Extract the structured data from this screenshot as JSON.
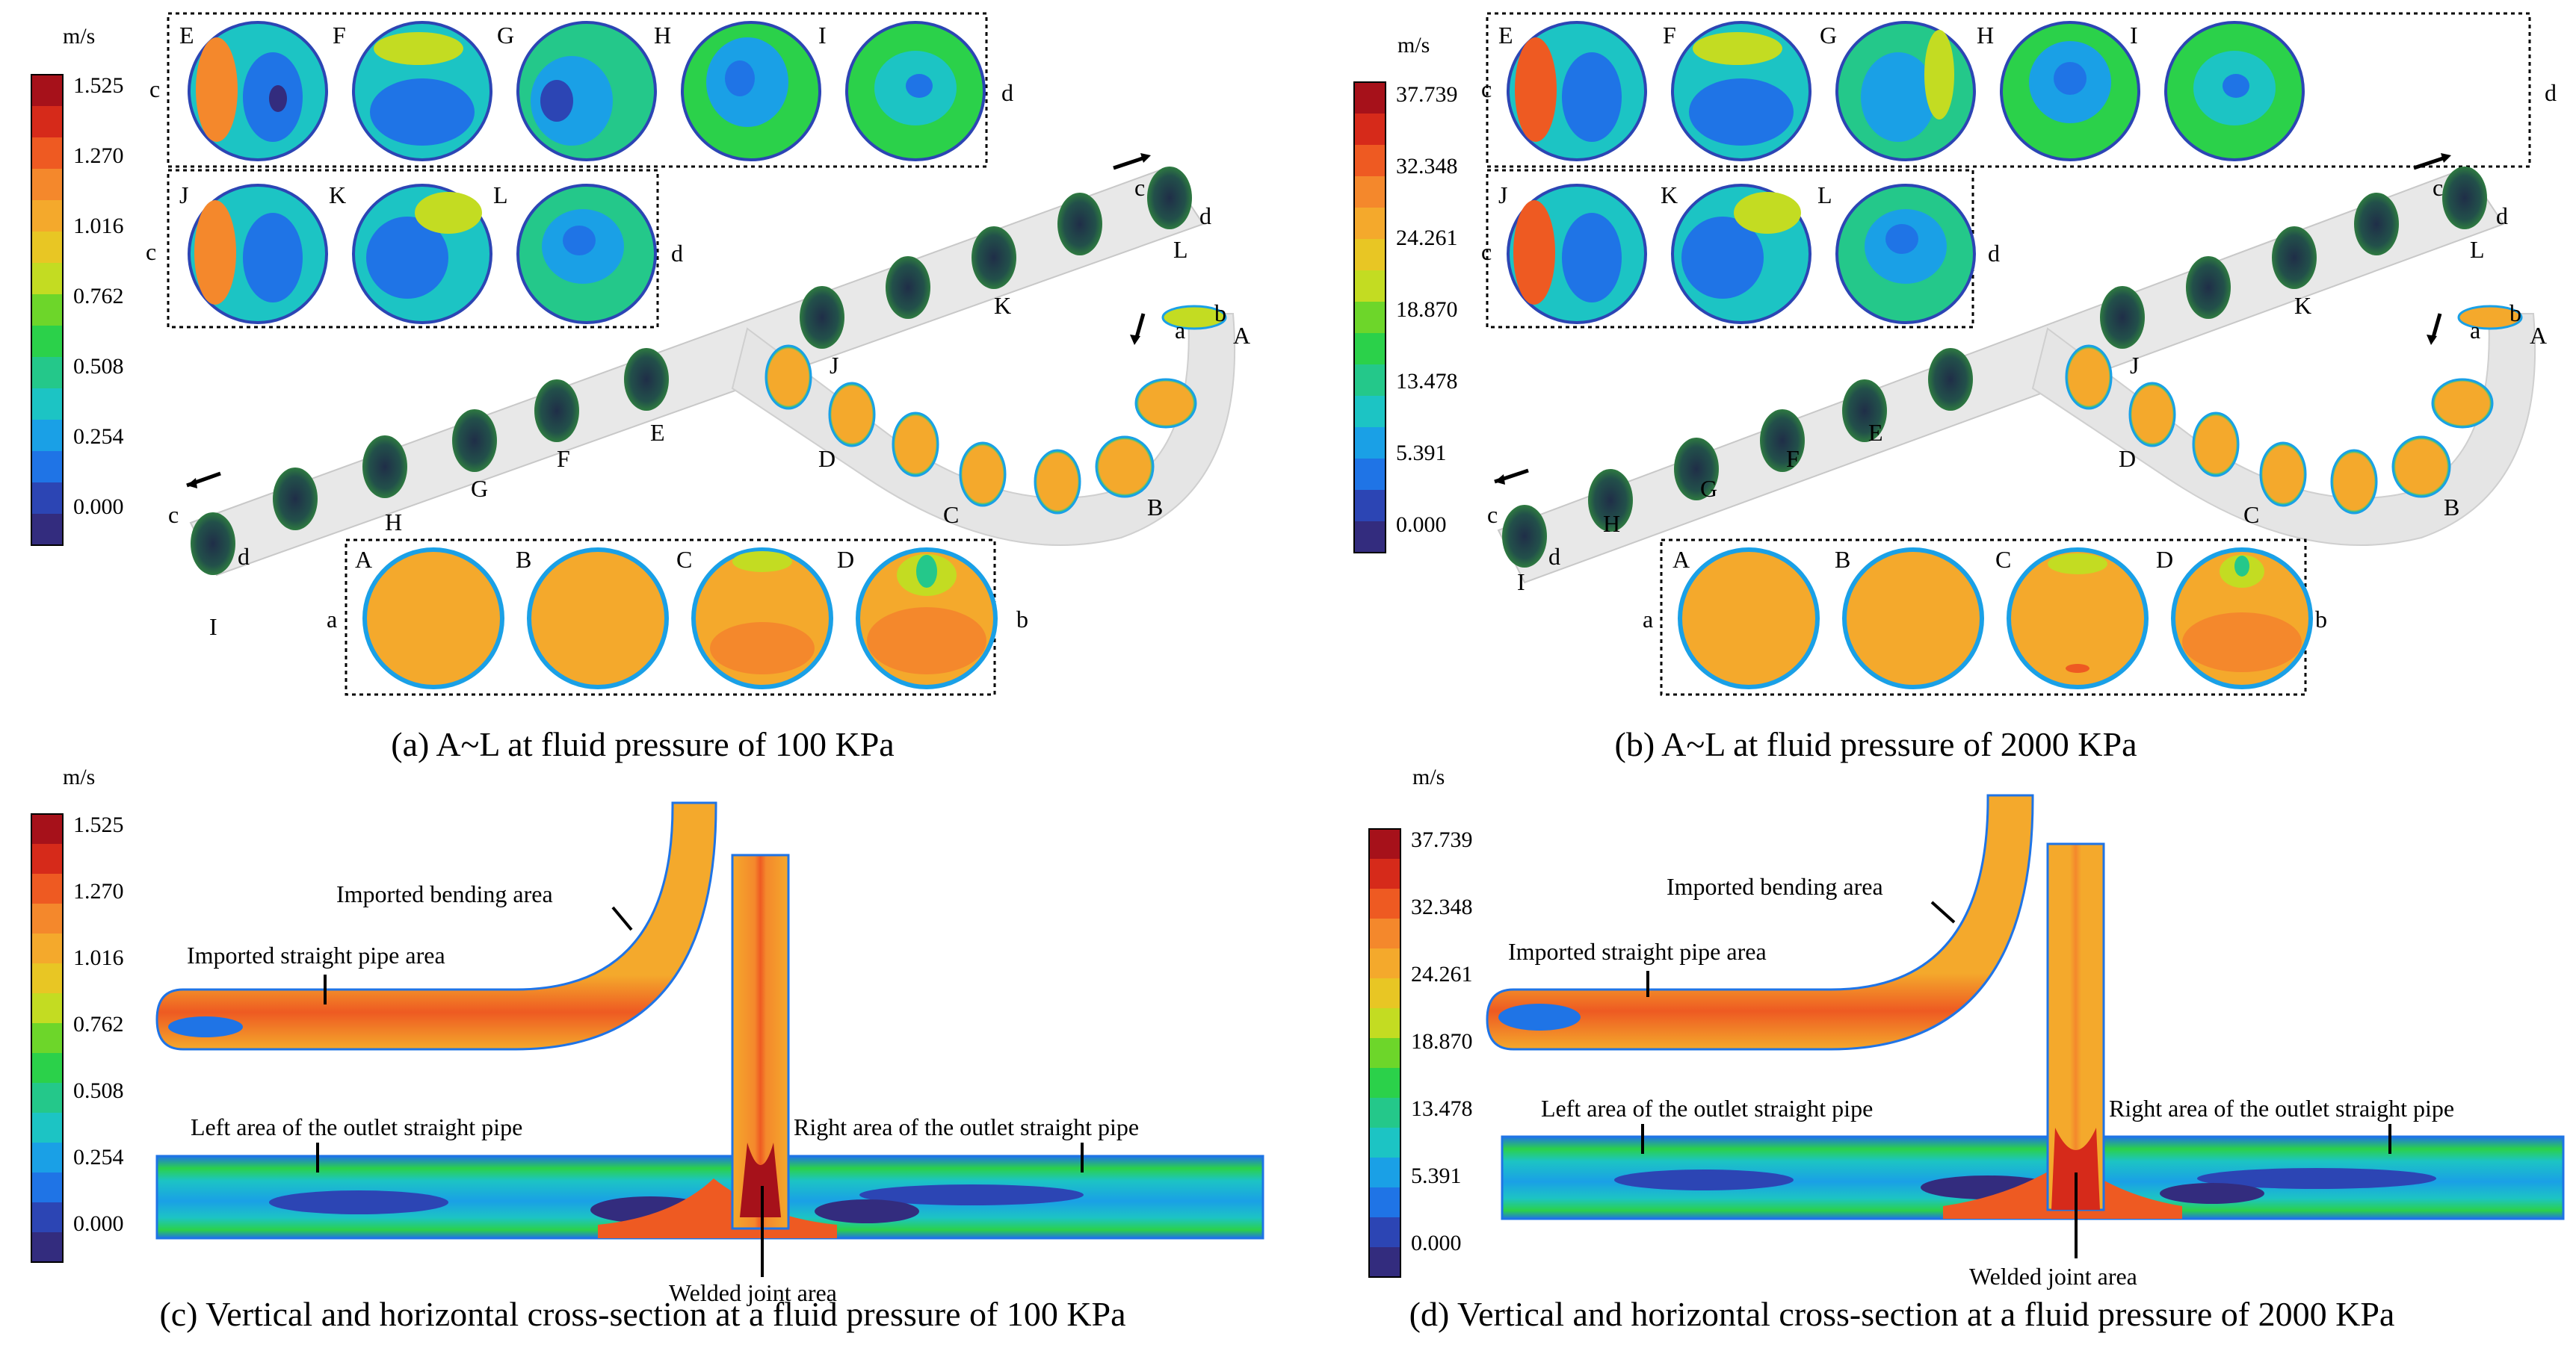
{
  "unit": "m/s",
  "colormap": [
    "#332c7e",
    "#2c45b4",
    "#1f74e6",
    "#1aa0e6",
    "#1cc4c4",
    "#24c88a",
    "#2bd14a",
    "#6dd62a",
    "#c3dc22",
    "#e8c624",
    "#f4a92c",
    "#f4882c",
    "#ee5a22",
    "#d62a1a",
    "#a6111a"
  ],
  "panel_a": {
    "caption": "(a) A~L at fluid pressure of 100 KPa",
    "scale_unit": "m/s",
    "scale_ticks": [
      "1.525",
      "1.270",
      "1.016",
      "0.762",
      "0.508",
      "0.254",
      "0.000"
    ],
    "upper_section_labels": [
      "E",
      "F",
      "G",
      "H",
      "I"
    ],
    "middle_section_labels": [
      "J",
      "K",
      "L"
    ],
    "lower_section_labels": [
      "A",
      "B",
      "C",
      "D"
    ],
    "pipe_labels": [
      "I",
      "H",
      "G",
      "F",
      "E",
      "J",
      "K",
      "L",
      "D",
      "C",
      "B",
      "A"
    ],
    "side_labels": {
      "c": "c",
      "d": "d",
      "a": "a",
      "b": "b"
    }
  },
  "panel_b": {
    "caption": "(b) A~L at fluid pressure of 2000 KPa",
    "scale_unit": "m/s",
    "scale_ticks": [
      "37.739",
      "32.348",
      "24.261",
      "18.870",
      "13.478",
      "5.391",
      "0.000"
    ],
    "upper_section_labels": [
      "E",
      "F",
      "G",
      "H",
      "I"
    ],
    "middle_section_labels": [
      "J",
      "K",
      "L"
    ],
    "lower_section_labels": [
      "A",
      "B",
      "C",
      "D"
    ],
    "pipe_labels": [
      "I",
      "H",
      "G",
      "F",
      "E",
      "J",
      "K",
      "L",
      "D",
      "C",
      "B",
      "A"
    ],
    "side_labels": {
      "c": "c",
      "d": "d",
      "a": "a",
      "b": "b"
    }
  },
  "panel_c": {
    "caption": "(c) Vertical and horizontal cross-section at a fluid pressure of 100 KPa",
    "scale_unit": "m/s",
    "scale_ticks": [
      "1.525",
      "1.270",
      "1.016",
      "0.762",
      "0.508",
      "0.254",
      "0.000"
    ],
    "annotations": {
      "bending": "Imported bending area",
      "straight": "Imported straight pipe area",
      "left_outlet": "Left area of the outlet straight pipe",
      "right_outlet": "Right area of the outlet straight pipe",
      "welded": "Welded joint area"
    }
  },
  "panel_d": {
    "caption": "(d) Vertical and horizontal cross-section at a fluid pressure of 2000 KPa",
    "scale_unit": "m/s",
    "scale_ticks": [
      "37.739",
      "32.348",
      "24.261",
      "18.870",
      "13.478",
      "5.391",
      "0.000"
    ],
    "annotations": {
      "bending": "Imported bending area",
      "straight": "Imported straight pipe area",
      "left_outlet": "Left area of the outlet straight pipe",
      "right_outlet": "Right area of the outlet straight pipe",
      "welded": "Welded joint area"
    }
  }
}
